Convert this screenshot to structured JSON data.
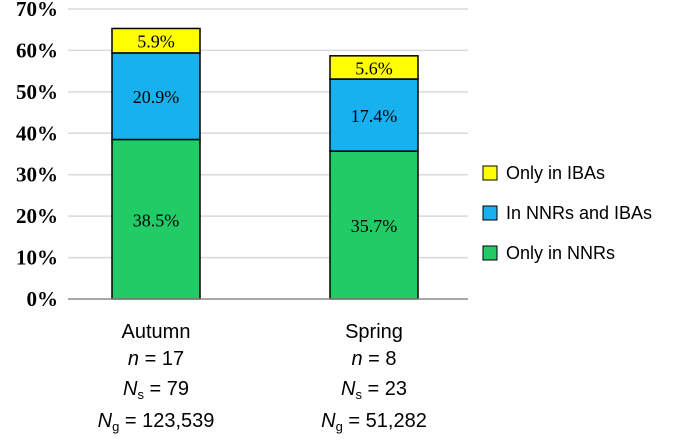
{
  "chart_data": {
    "type": "bar",
    "stacked": true,
    "ylim": [
      0,
      70
    ],
    "y_ticks": [
      "0%",
      "10%",
      "20%",
      "30%",
      "40%",
      "50%",
      "60%",
      "70%"
    ],
    "grid": true,
    "legend_position": "right",
    "categories": [
      "Autumn",
      "Spring"
    ],
    "series": [
      {
        "name": "Only in NNRs",
        "color": "#21cc66",
        "values": [
          38.5,
          35.7
        ],
        "labels": [
          "38.5%",
          "35.7%"
        ]
      },
      {
        "name": "In NNRs and IBAs",
        "color": "#17b1ef",
        "values": [
          20.9,
          17.4
        ],
        "labels": [
          "20.9%",
          "17.4%"
        ]
      },
      {
        "name": "Only in IBAs",
        "color": "#ffff00",
        "values": [
          5.9,
          5.6
        ],
        "labels": [
          "5.9%",
          "5.6%"
        ]
      }
    ],
    "category_details": [
      {
        "name": "Autumn",
        "n": "17",
        "Ns": "79",
        "Ng": "123,539"
      },
      {
        "name": "Spring",
        "n": "8",
        "Ns": "23",
        "Ng": "51,282"
      }
    ]
  }
}
